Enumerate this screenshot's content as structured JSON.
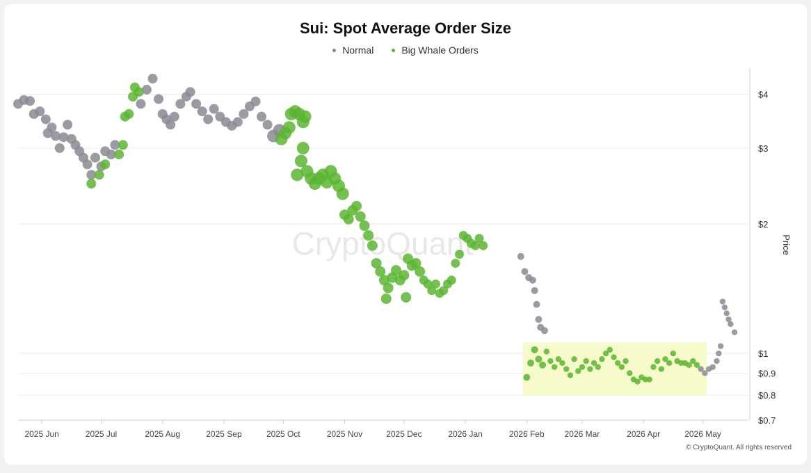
{
  "chart_data": {
    "type": "scatter",
    "title": "Sui: Spot Average Order Size",
    "watermark": "CryptoQuant",
    "copyright": "© CryptoQuant. All rights reserved",
    "y_axis_label": "Price",
    "y_scale": "log",
    "y_range": [
      0.7,
      4.6
    ],
    "x_range": [
      "2025-05-20",
      "2026-05-24"
    ],
    "legend_position": "top-center",
    "grid": "horizontal",
    "colors": {
      "normal": "#8a8994",
      "big_whale": "#5cb531",
      "highlight": "#f6f9c2"
    },
    "legend": [
      {
        "key": "normal",
        "label": "Normal"
      },
      {
        "key": "big_whale",
        "label": "Big Whale Orders"
      }
    ],
    "x_ticks": [
      {
        "label": "2025 Jun",
        "date": "2025-06-01"
      },
      {
        "label": "2025 Jul",
        "date": "2025-07-01"
      },
      {
        "label": "2025 Aug",
        "date": "2025-08-01"
      },
      {
        "label": "2025 Sep",
        "date": "2025-09-01"
      },
      {
        "label": "2025 Oct",
        "date": "2025-10-01"
      },
      {
        "label": "2025 Nov",
        "date": "2025-11-01"
      },
      {
        "label": "2025 Dec",
        "date": "2025-12-01"
      },
      {
        "label": "2026 Jan",
        "date": "2026-01-01"
      },
      {
        "label": "2026 Feb",
        "date": "2026-02-01"
      },
      {
        "label": "2026 Mar",
        "date": "2026-03-01"
      },
      {
        "label": "2026 Apr",
        "date": "2026-04-01"
      },
      {
        "label": "2026 May",
        "date": "2026-05-01"
      }
    ],
    "y_ticks": [
      {
        "label": "$4",
        "value": 4
      },
      {
        "label": "$3",
        "value": 3
      },
      {
        "label": "$2",
        "value": 2
      },
      {
        "label": "$1",
        "value": 1
      },
      {
        "label": "$0.9",
        "value": 0.9
      },
      {
        "label": "$0.8",
        "value": 0.8
      },
      {
        "label": "$0.7",
        "value": 0.7
      }
    ],
    "highlight_box": {
      "x_start": "2026-01-30",
      "x_end": "2026-05-03",
      "y_low": 0.8,
      "y_high": 1.06
    },
    "series": [
      {
        "key": "normal",
        "name": "Normal",
        "size": "large",
        "points": [
          [
            "2025-05-20",
            3.8
          ],
          [
            "2025-05-23",
            3.88
          ],
          [
            "2025-05-26",
            3.86
          ],
          [
            "2025-05-28",
            3.6
          ],
          [
            "2025-05-31",
            3.65
          ],
          [
            "2025-06-03",
            3.5
          ],
          [
            "2025-06-04",
            3.25
          ],
          [
            "2025-06-06",
            3.35
          ],
          [
            "2025-06-08",
            3.2
          ],
          [
            "2025-06-10",
            3.0
          ],
          [
            "2025-06-12",
            3.18
          ],
          [
            "2025-06-14",
            3.4
          ],
          [
            "2025-06-16",
            3.15
          ],
          [
            "2025-06-18",
            3.05
          ],
          [
            "2025-06-20",
            2.95
          ],
          [
            "2025-06-22",
            2.85
          ],
          [
            "2025-06-24",
            2.75
          ],
          [
            "2025-06-26",
            2.6
          ],
          [
            "2025-06-28",
            2.85
          ],
          [
            "2025-07-01",
            2.72
          ],
          [
            "2025-07-03",
            2.95
          ],
          [
            "2025-07-06",
            2.9
          ],
          [
            "2025-07-08",
            3.05
          ],
          [
            "2025-07-21",
            3.8
          ],
          [
            "2025-07-24",
            4.1
          ],
          [
            "2025-07-27",
            4.35
          ],
          [
            "2025-07-30",
            3.9
          ],
          [
            "2025-08-01",
            3.6
          ],
          [
            "2025-08-03",
            3.5
          ],
          [
            "2025-08-05",
            3.4
          ],
          [
            "2025-08-07",
            3.55
          ],
          [
            "2025-08-10",
            3.8
          ],
          [
            "2025-08-13",
            3.95
          ],
          [
            "2025-08-15",
            4.05
          ],
          [
            "2025-08-18",
            3.8
          ],
          [
            "2025-08-21",
            3.65
          ],
          [
            "2025-08-24",
            3.5
          ],
          [
            "2025-08-27",
            3.7
          ],
          [
            "2025-08-30",
            3.55
          ],
          [
            "2025-09-02",
            3.45
          ],
          [
            "2025-09-05",
            3.38
          ],
          [
            "2025-09-08",
            3.45
          ],
          [
            "2025-09-11",
            3.6
          ],
          [
            "2025-09-14",
            3.75
          ],
          [
            "2025-09-17",
            3.85
          ],
          [
            "2025-09-20",
            3.55
          ],
          [
            "2025-09-23",
            3.4
          ],
          [
            "2025-09-26",
            3.2
          ],
          [
            "2025-09-29",
            3.3
          ],
          [
            "2026-01-29",
            1.68
          ],
          [
            "2026-01-31",
            1.55
          ],
          [
            "2026-02-02",
            1.5
          ],
          [
            "2026-02-04",
            1.48
          ],
          [
            "2026-02-05",
            1.4
          ],
          [
            "2026-02-06",
            1.3
          ],
          [
            "2026-02-07",
            1.2
          ],
          [
            "2026-02-08",
            1.15
          ],
          [
            "2026-02-10",
            1.13
          ],
          [
            "2026-04-30",
            0.92
          ],
          [
            "2026-05-02",
            0.9
          ],
          [
            "2026-05-04",
            0.92
          ],
          [
            "2026-05-06",
            0.93
          ],
          [
            "2026-05-08",
            0.96
          ],
          [
            "2026-05-09",
            1.0
          ],
          [
            "2026-05-10",
            1.04
          ],
          [
            "2026-05-11",
            1.32
          ],
          [
            "2026-05-12",
            1.28
          ],
          [
            "2026-05-13",
            1.24
          ],
          [
            "2026-05-14",
            1.2
          ],
          [
            "2026-05-15",
            1.17
          ],
          [
            "2026-05-17",
            1.12
          ]
        ]
      },
      {
        "key": "big_whale",
        "name": "Big Whale Orders",
        "size": "large",
        "points": [
          [
            "2025-06-26",
            2.48
          ],
          [
            "2025-06-30",
            2.6
          ],
          [
            "2025-07-03",
            2.75
          ],
          [
            "2025-07-10",
            2.9
          ],
          [
            "2025-07-12",
            3.05
          ],
          [
            "2025-07-13",
            3.55
          ],
          [
            "2025-07-15",
            3.6
          ],
          [
            "2025-07-17",
            3.95
          ],
          [
            "2025-07-18",
            4.15
          ],
          [
            "2025-07-20",
            4.05
          ],
          [
            "2025-09-30",
            3.15
          ],
          [
            "2025-10-02",
            3.25
          ],
          [
            "2025-10-04",
            3.35
          ],
          [
            "2025-10-05",
            3.6
          ],
          [
            "2025-10-07",
            3.65
          ],
          [
            "2025-10-09",
            3.6
          ],
          [
            "2025-10-11",
            3.45
          ],
          [
            "2025-10-12",
            3.55
          ],
          [
            "2025-10-08",
            2.6
          ],
          [
            "2025-10-10",
            2.8
          ],
          [
            "2025-10-11",
            3.0
          ],
          [
            "2025-10-13",
            2.65
          ],
          [
            "2025-10-15",
            2.55
          ],
          [
            "2025-10-17",
            2.48
          ],
          [
            "2025-10-19",
            2.55
          ],
          [
            "2025-10-21",
            2.6
          ],
          [
            "2025-10-23",
            2.5
          ],
          [
            "2025-10-25",
            2.65
          ],
          [
            "2025-10-27",
            2.55
          ],
          [
            "2025-10-29",
            2.45
          ],
          [
            "2025-10-31",
            2.35
          ],
          [
            "2025-11-01",
            2.1
          ],
          [
            "2025-11-03",
            2.05
          ],
          [
            "2025-11-05",
            2.15
          ],
          [
            "2025-11-07",
            2.2
          ],
          [
            "2025-11-09",
            2.08
          ],
          [
            "2025-11-11",
            1.98
          ],
          [
            "2025-11-13",
            1.88
          ],
          [
            "2025-11-15",
            1.78
          ],
          [
            "2025-11-17",
            1.62
          ],
          [
            "2025-11-19",
            1.55
          ],
          [
            "2025-11-21",
            1.48
          ],
          [
            "2025-11-23",
            1.42
          ],
          [
            "2025-11-25",
            1.5
          ],
          [
            "2025-11-27",
            1.56
          ],
          [
            "2025-11-29",
            1.48
          ],
          [
            "2025-12-01",
            1.52
          ],
          [
            "2025-12-03",
            1.66
          ],
          [
            "2025-12-05",
            1.6
          ],
          [
            "2025-12-07",
            1.62
          ],
          [
            "2025-12-09",
            1.55
          ],
          [
            "2025-12-11",
            1.48
          ],
          [
            "2025-12-13",
            1.45
          ],
          [
            "2025-12-15",
            1.4
          ],
          [
            "2025-12-17",
            1.45
          ],
          [
            "2025-12-19",
            1.38
          ],
          [
            "2025-12-21",
            1.4
          ],
          [
            "2025-12-23",
            1.45
          ],
          [
            "2025-12-25",
            1.48
          ],
          [
            "2025-12-27",
            1.62
          ],
          [
            "2025-12-29",
            1.7
          ],
          [
            "2025-12-31",
            1.88
          ],
          [
            "2026-01-02",
            1.85
          ],
          [
            "2026-01-04",
            1.8
          ],
          [
            "2026-01-06",
            1.78
          ],
          [
            "2026-01-08",
            1.85
          ],
          [
            "2026-01-10",
            1.78
          ],
          [
            "2025-12-02",
            1.35
          ],
          [
            "2025-11-22",
            1.34
          ],
          [
            "2026-02-01",
            0.88
          ],
          [
            "2026-02-03",
            0.95
          ],
          [
            "2026-02-05",
            1.02
          ],
          [
            "2026-02-07",
            0.97
          ],
          [
            "2026-02-09",
            0.94
          ],
          [
            "2026-02-11",
            1.01
          ],
          [
            "2026-02-13",
            0.96
          ],
          [
            "2026-02-15",
            0.93
          ],
          [
            "2026-02-17",
            0.97
          ],
          [
            "2026-02-19",
            0.95
          ],
          [
            "2026-02-21",
            0.92
          ],
          [
            "2026-02-23",
            0.89
          ],
          [
            "2026-02-25",
            0.97
          ],
          [
            "2026-02-27",
            0.91
          ],
          [
            "2026-03-01",
            0.93
          ],
          [
            "2026-03-03",
            0.96
          ],
          [
            "2026-03-05",
            0.92
          ],
          [
            "2026-03-07",
            0.95
          ],
          [
            "2026-03-09",
            0.93
          ],
          [
            "2026-03-11",
            0.97
          ],
          [
            "2026-03-13",
            1.0
          ],
          [
            "2026-03-15",
            1.02
          ],
          [
            "2026-03-17",
            0.98
          ],
          [
            "2026-03-19",
            0.95
          ],
          [
            "2026-03-21",
            0.93
          ],
          [
            "2026-03-23",
            0.96
          ],
          [
            "2026-03-25",
            0.9
          ],
          [
            "2026-03-27",
            0.87
          ],
          [
            "2026-03-29",
            0.86
          ],
          [
            "2026-03-31",
            0.88
          ],
          [
            "2026-04-02",
            0.87
          ],
          [
            "2026-04-04",
            0.87
          ],
          [
            "2026-04-06",
            0.93
          ],
          [
            "2026-04-08",
            0.96
          ],
          [
            "2026-04-10",
            0.92
          ],
          [
            "2026-04-12",
            0.97
          ],
          [
            "2026-04-14",
            0.95
          ],
          [
            "2026-04-16",
            1.0
          ],
          [
            "2026-04-18",
            0.96
          ],
          [
            "2026-04-20",
            0.95
          ],
          [
            "2026-04-22",
            0.95
          ],
          [
            "2026-04-24",
            0.94
          ],
          [
            "2026-04-26",
            0.96
          ],
          [
            "2026-04-28",
            0.94
          ]
        ]
      }
    ]
  }
}
